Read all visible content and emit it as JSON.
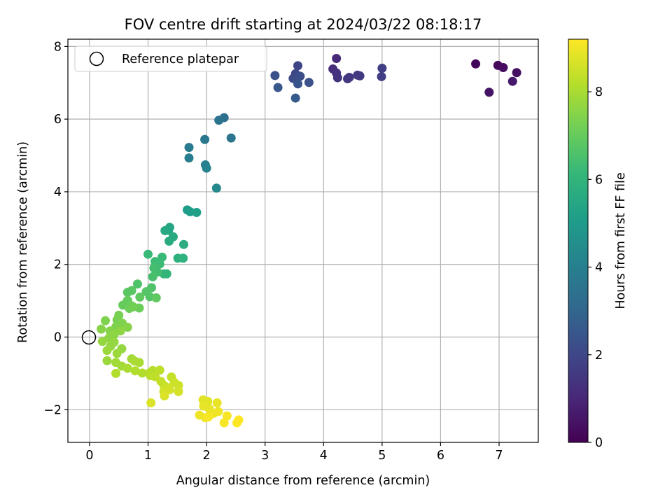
{
  "colors": {
    "grid": "#b0b0b0",
    "axis": "#000000",
    "viridis": [
      "#440154",
      "#482878",
      "#3e4989",
      "#31688e",
      "#26828e",
      "#1f9e89",
      "#35b779",
      "#6ece58",
      "#b5de2b",
      "#fde725"
    ]
  },
  "chart_data": {
    "type": "scatter",
    "title": "FOV centre drift starting at 2024/03/22 08:18:17",
    "xlabel": "Angular distance from reference (arcmin)",
    "ylabel": "Rotation from reference (arcmin)",
    "xlim": [
      -0.37,
      7.67
    ],
    "ylim": [
      -2.9,
      8.2
    ],
    "xticks": [
      0,
      1,
      2,
      3,
      4,
      5,
      6,
      7
    ],
    "yticks": [
      -2,
      0,
      2,
      4,
      6,
      8
    ],
    "grid": true,
    "legend": {
      "placement": "top-left",
      "entries": [
        "Reference platepar"
      ]
    },
    "reference_point": {
      "x": 0,
      "y": 0,
      "label": "Reference platepar"
    },
    "colorbar": {
      "label": "Hours from first FF file",
      "min": 0,
      "max": 9.2,
      "ticks": [
        0,
        2,
        4,
        6,
        8
      ],
      "colormap": "viridis"
    },
    "points": [
      {
        "x": 6.6,
        "y": 7.52,
        "c": 0.1
      },
      {
        "x": 6.98,
        "y": 7.48,
        "c": 0.2
      },
      {
        "x": 7.07,
        "y": 7.42,
        "c": 0.3
      },
      {
        "x": 7.3,
        "y": 7.28,
        "c": 0.4
      },
      {
        "x": 6.83,
        "y": 6.74,
        "c": 0.5
      },
      {
        "x": 7.23,
        "y": 7.04,
        "c": 0.6
      },
      {
        "x": 4.22,
        "y": 7.67,
        "c": 1.1
      },
      {
        "x": 4.16,
        "y": 7.38,
        "c": 1.2
      },
      {
        "x": 4.22,
        "y": 7.27,
        "c": 1.3
      },
      {
        "x": 4.24,
        "y": 7.14,
        "c": 1.4
      },
      {
        "x": 4.44,
        "y": 7.15,
        "c": 1.5
      },
      {
        "x": 4.41,
        "y": 7.11,
        "c": 1.5
      },
      {
        "x": 4.58,
        "y": 7.21,
        "c": 1.6
      },
      {
        "x": 4.62,
        "y": 7.19,
        "c": 1.6
      },
      {
        "x": 5.0,
        "y": 7.4,
        "c": 1.7
      },
      {
        "x": 4.99,
        "y": 7.17,
        "c": 1.7
      },
      {
        "x": 3.56,
        "y": 7.47,
        "c": 1.9
      },
      {
        "x": 3.52,
        "y": 7.25,
        "c": 2.0
      },
      {
        "x": 3.48,
        "y": 7.12,
        "c": 2.1
      },
      {
        "x": 3.6,
        "y": 7.18,
        "c": 2.2
      },
      {
        "x": 3.17,
        "y": 7.2,
        "c": 2.3
      },
      {
        "x": 3.75,
        "y": 7.01,
        "c": 2.3
      },
      {
        "x": 3.56,
        "y": 6.97,
        "c": 2.4
      },
      {
        "x": 3.22,
        "y": 6.87,
        "c": 2.5
      },
      {
        "x": 3.52,
        "y": 6.58,
        "c": 2.6
      },
      {
        "x": 2.3,
        "y": 6.04,
        "c": 3.4
      },
      {
        "x": 2.21,
        "y": 5.97,
        "c": 3.5
      },
      {
        "x": 2.42,
        "y": 5.48,
        "c": 3.6
      },
      {
        "x": 1.97,
        "y": 5.44,
        "c": 3.7
      },
      {
        "x": 1.7,
        "y": 5.22,
        "c": 3.8
      },
      {
        "x": 1.7,
        "y": 4.93,
        "c": 3.9
      },
      {
        "x": 1.98,
        "y": 4.74,
        "c": 4.0
      },
      {
        "x": 2.0,
        "y": 4.65,
        "c": 4.1
      },
      {
        "x": 2.17,
        "y": 4.1,
        "c": 4.3
      },
      {
        "x": 1.67,
        "y": 3.5,
        "c": 5.0
      },
      {
        "x": 1.72,
        "y": 3.45,
        "c": 5.1
      },
      {
        "x": 1.83,
        "y": 3.43,
        "c": 5.2
      },
      {
        "x": 1.37,
        "y": 3.02,
        "c": 5.4
      },
      {
        "x": 1.35,
        "y": 2.94,
        "c": 5.4
      },
      {
        "x": 1.29,
        "y": 2.93,
        "c": 5.5
      },
      {
        "x": 1.43,
        "y": 2.76,
        "c": 5.6
      },
      {
        "x": 1.36,
        "y": 2.64,
        "c": 5.6
      },
      {
        "x": 1.61,
        "y": 2.55,
        "c": 5.7
      },
      {
        "x": 1.51,
        "y": 2.17,
        "c": 5.8
      },
      {
        "x": 1.6,
        "y": 2.17,
        "c": 5.9
      },
      {
        "x": 1.27,
        "y": 1.74,
        "c": 6.0
      },
      {
        "x": 1.32,
        "y": 1.74,
        "c": 6.0
      },
      {
        "x": 1.0,
        "y": 2.28,
        "c": 6.2
      },
      {
        "x": 1.24,
        "y": 2.2,
        "c": 6.2
      },
      {
        "x": 1.12,
        "y": 2.08,
        "c": 6.3
      },
      {
        "x": 1.2,
        "y": 2.01,
        "c": 6.3
      },
      {
        "x": 1.1,
        "y": 1.9,
        "c": 6.4
      },
      {
        "x": 1.16,
        "y": 1.79,
        "c": 6.4
      },
      {
        "x": 1.08,
        "y": 1.66,
        "c": 6.5
      },
      {
        "x": 0.82,
        "y": 1.46,
        "c": 6.6
      },
      {
        "x": 1.06,
        "y": 1.36,
        "c": 6.6
      },
      {
        "x": 0.97,
        "y": 1.25,
        "c": 6.7
      },
      {
        "x": 1.03,
        "y": 1.11,
        "c": 6.7
      },
      {
        "x": 0.65,
        "y": 1.23,
        "c": 6.8
      },
      {
        "x": 0.72,
        "y": 1.28,
        "c": 6.8
      },
      {
        "x": 0.86,
        "y": 1.1,
        "c": 6.9
      },
      {
        "x": 1.14,
        "y": 1.08,
        "c": 6.9
      },
      {
        "x": 0.65,
        "y": 1.01,
        "c": 7.0
      },
      {
        "x": 0.57,
        "y": 0.88,
        "c": 7.0
      },
      {
        "x": 0.72,
        "y": 0.86,
        "c": 7.1
      },
      {
        "x": 0.68,
        "y": 0.79,
        "c": 7.1
      },
      {
        "x": 0.85,
        "y": 0.8,
        "c": 7.1
      },
      {
        "x": 0.75,
        "y": 0.83,
        "c": 7.2
      },
      {
        "x": 0.5,
        "y": 0.6,
        "c": 7.3
      },
      {
        "x": 0.47,
        "y": 0.47,
        "c": 7.3
      },
      {
        "x": 0.56,
        "y": 0.38,
        "c": 7.4
      },
      {
        "x": 0.27,
        "y": 0.45,
        "c": 7.4
      },
      {
        "x": 0.45,
        "y": 0.28,
        "c": 7.4
      },
      {
        "x": 0.65,
        "y": 0.27,
        "c": 7.5
      },
      {
        "x": 0.2,
        "y": 0.22,
        "c": 7.5
      },
      {
        "x": 0.35,
        "y": 0.17,
        "c": 7.5
      },
      {
        "x": 0.53,
        "y": 0.17,
        "c": 7.6
      },
      {
        "x": 0.42,
        "y": 0.07,
        "c": 7.6
      },
      {
        "x": 0.33,
        "y": -0.03,
        "c": 7.6
      },
      {
        "x": 0.22,
        "y": -0.12,
        "c": 7.7
      },
      {
        "x": 0.42,
        "y": -0.14,
        "c": 7.7
      },
      {
        "x": 0.36,
        "y": -0.25,
        "c": 7.7
      },
      {
        "x": 0.55,
        "y": -0.32,
        "c": 7.7
      },
      {
        "x": 0.3,
        "y": -0.37,
        "c": 7.8
      },
      {
        "x": 0.47,
        "y": -0.45,
        "c": 7.8
      },
      {
        "x": 0.3,
        "y": -0.65,
        "c": 7.8
      },
      {
        "x": 0.45,
        "y": -0.7,
        "c": 7.9
      },
      {
        "x": 0.55,
        "y": -0.8,
        "c": 7.9
      },
      {
        "x": 0.72,
        "y": -0.6,
        "c": 7.9
      },
      {
        "x": 0.77,
        "y": -0.66,
        "c": 8.0
      },
      {
        "x": 0.65,
        "y": -0.86,
        "c": 8.0
      },
      {
        "x": 0.85,
        "y": -0.7,
        "c": 8.0
      },
      {
        "x": 0.78,
        "y": -0.93,
        "c": 8.1
      },
      {
        "x": 0.9,
        "y": -0.99,
        "c": 8.1
      },
      {
        "x": 0.45,
        "y": -1.0,
        "c": 8.1
      },
      {
        "x": 1.03,
        "y": -0.98,
        "c": 8.2
      },
      {
        "x": 1.08,
        "y": -0.92,
        "c": 8.2
      },
      {
        "x": 1.04,
        "y": -1.06,
        "c": 8.2
      },
      {
        "x": 1.2,
        "y": -0.91,
        "c": 8.3
      },
      {
        "x": 1.12,
        "y": -1.09,
        "c": 8.3
      },
      {
        "x": 1.22,
        "y": -1.22,
        "c": 8.4
      },
      {
        "x": 1.27,
        "y": -1.33,
        "c": 8.4
      },
      {
        "x": 1.4,
        "y": -1.1,
        "c": 8.4
      },
      {
        "x": 1.32,
        "y": -1.38,
        "c": 8.5
      },
      {
        "x": 1.45,
        "y": -1.25,
        "c": 8.5
      },
      {
        "x": 1.52,
        "y": -1.33,
        "c": 8.5
      },
      {
        "x": 1.27,
        "y": -1.5,
        "c": 8.6
      },
      {
        "x": 1.37,
        "y": -1.45,
        "c": 8.6
      },
      {
        "x": 1.52,
        "y": -1.5,
        "c": 8.6
      },
      {
        "x": 1.28,
        "y": -1.62,
        "c": 8.7
      },
      {
        "x": 1.05,
        "y": -1.81,
        "c": 8.7
      },
      {
        "x": 1.94,
        "y": -1.73,
        "c": 8.8
      },
      {
        "x": 2.02,
        "y": -1.77,
        "c": 8.8
      },
      {
        "x": 2.18,
        "y": -1.81,
        "c": 8.9
      },
      {
        "x": 1.95,
        "y": -1.9,
        "c": 8.9
      },
      {
        "x": 2.05,
        "y": -1.98,
        "c": 8.9
      },
      {
        "x": 2.2,
        "y": -2.05,
        "c": 9.0
      },
      {
        "x": 2.12,
        "y": -2.1,
        "c": 9.0
      },
      {
        "x": 1.88,
        "y": -2.15,
        "c": 9.0
      },
      {
        "x": 1.98,
        "y": -2.22,
        "c": 9.0
      },
      {
        "x": 2.03,
        "y": -2.2,
        "c": 9.1
      },
      {
        "x": 2.35,
        "y": -2.17,
        "c": 9.1
      },
      {
        "x": 2.3,
        "y": -2.36,
        "c": 9.1
      },
      {
        "x": 2.55,
        "y": -2.28,
        "c": 9.2
      },
      {
        "x": 2.52,
        "y": -2.36,
        "c": 9.2
      }
    ]
  }
}
